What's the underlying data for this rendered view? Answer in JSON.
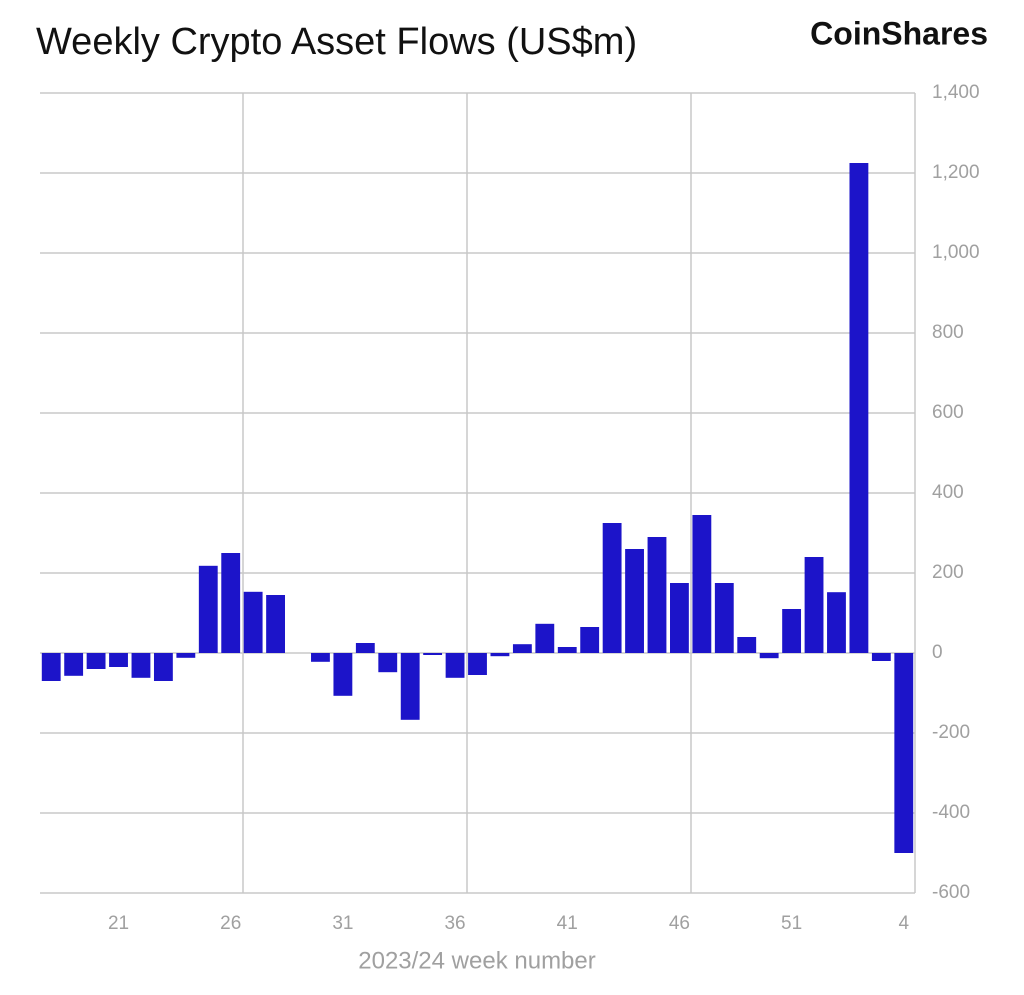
{
  "chart_data": {
    "type": "bar",
    "title": "Weekly Crypto Asset Flows (US$m)",
    "source": "CoinShares",
    "x_label": "2023/24 week number",
    "categories": [
      null,
      null,
      null,
      "21",
      null,
      null,
      null,
      null,
      "26",
      null,
      null,
      null,
      null,
      "31",
      null,
      null,
      null,
      null,
      "36",
      null,
      null,
      null,
      null,
      "41",
      null,
      null,
      null,
      null,
      "46",
      null,
      null,
      null,
      null,
      "51",
      null,
      null,
      null,
      null,
      "4"
    ],
    "values": [
      -70,
      -57,
      -40,
      -35,
      -62,
      -70,
      -12,
      218,
      250,
      153,
      145,
      0,
      -22,
      -107,
      25,
      -48,
      -167,
      -5,
      -62,
      -55,
      -8,
      22,
      73,
      15,
      65,
      325,
      260,
      290,
      175,
      345,
      175,
      40,
      -13,
      110,
      240,
      152,
      1225,
      -20,
      -500
    ],
    "color": "#1c14c9",
    "ylim": [
      -600,
      1400
    ],
    "yticks": [
      -600,
      -400,
      -200,
      0,
      200,
      400,
      600,
      800,
      {
        "value": 1000,
        "label": "1,000"
      },
      {
        "value": 1200,
        "label": "1,200"
      },
      {
        "value": 1400,
        "label": "1,400"
      }
    ],
    "grid": true
  }
}
